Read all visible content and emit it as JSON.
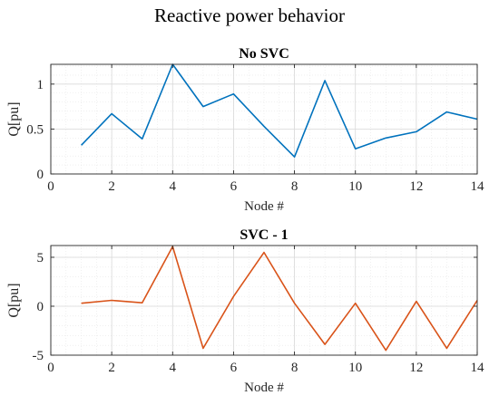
{
  "figure": {
    "title": "Reactive power behavior"
  },
  "chart_data": [
    {
      "type": "line",
      "title": "No SVC",
      "xlabel": "Node #",
      "ylabel": "Q[pu]",
      "xlim": [
        0,
        14
      ],
      "ylim": [
        0,
        1.22
      ],
      "xticks": [
        0,
        2,
        4,
        6,
        8,
        10,
        12,
        14
      ],
      "yticks": [
        0,
        0.5,
        1
      ],
      "ytick_labels": [
        "0",
        "0.5",
        "1"
      ],
      "grid": true,
      "minor_grid": true,
      "series": [
        {
          "color": "#0072BD",
          "x": [
            1,
            2,
            3,
            4,
            5,
            6,
            7,
            8,
            9,
            10,
            11,
            12,
            13,
            14
          ],
          "values": [
            0.32,
            0.67,
            0.39,
            1.22,
            0.75,
            0.89,
            0.53,
            0.19,
            1.04,
            0.28,
            0.4,
            0.47,
            0.69,
            0.61
          ]
        }
      ]
    },
    {
      "type": "line",
      "title": "SVC - 1",
      "xlabel": "Node #",
      "ylabel": "Q[pu]",
      "xlim": [
        0,
        14
      ],
      "ylim": [
        -5,
        6.2
      ],
      "xticks": [
        0,
        2,
        4,
        6,
        8,
        10,
        12,
        14
      ],
      "yticks": [
        -5,
        0,
        5
      ],
      "ytick_labels": [
        "-5",
        "0",
        "5"
      ],
      "grid": true,
      "minor_grid": true,
      "series": [
        {
          "color": "#D95319",
          "x": [
            1,
            2,
            3,
            4,
            5,
            6,
            7,
            8,
            9,
            10,
            11,
            12,
            13,
            14
          ],
          "values": [
            0.3,
            0.6,
            0.35,
            6.1,
            -4.3,
            1.0,
            5.5,
            0.3,
            -3.9,
            0.3,
            -4.5,
            0.5,
            -4.3,
            0.6
          ]
        }
      ]
    }
  ]
}
